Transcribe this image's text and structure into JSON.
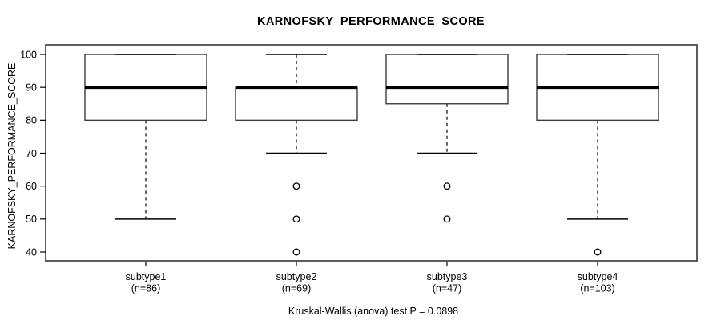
{
  "chart": {
    "title": "KARNOFSKY_PERFORMANCE_SCORE",
    "caption": "Kruskal-Wallis (anova) test P = 0.0898",
    "y_axis_label": "KARNOFSKY_PERFORMANCE_SCORE"
  },
  "chart_data": {
    "type": "boxplot",
    "title": "KARNOFSKY_PERFORMANCE_SCORE",
    "ylabel": "KARNOFSKY_PERFORMANCE_SCORE",
    "xlabel": "",
    "caption": "Kruskal-Wallis (anova) test P = 0.0898",
    "ylim": [
      40,
      100
    ],
    "yticks": [
      40,
      50,
      60,
      70,
      80,
      90,
      100
    ],
    "grid": false,
    "legend": "none",
    "groups": [
      {
        "label": "subtype1",
        "sublabel": "(n=86)",
        "n": 86,
        "whisker_low": 50,
        "q1": 80,
        "median": 90,
        "q3": 100,
        "whisker_high": 100,
        "outliers": []
      },
      {
        "label": "subtype2",
        "sublabel": "(n=69)",
        "n": 69,
        "whisker_low": 70,
        "q1": 80,
        "median": 90,
        "q3": 90,
        "whisker_high": 100,
        "outliers": [
          60,
          50,
          40
        ]
      },
      {
        "label": "subtype3",
        "sublabel": "(n=47)",
        "n": 47,
        "whisker_low": 70,
        "q1": 85,
        "median": 90,
        "q3": 100,
        "whisker_high": 100,
        "outliers": [
          60,
          50
        ]
      },
      {
        "label": "subtype4",
        "sublabel": "(n=103)",
        "n": 103,
        "whisker_low": 50,
        "q1": 80,
        "median": 90,
        "q3": 100,
        "whisker_high": 100,
        "outliers": [
          40
        ]
      }
    ],
    "colors": {
      "background": "#ffffff",
      "frame": "#4a4a4a",
      "box_border": "#3c3c3c",
      "line": "#000000",
      "box_fill": "#ffffff"
    }
  }
}
